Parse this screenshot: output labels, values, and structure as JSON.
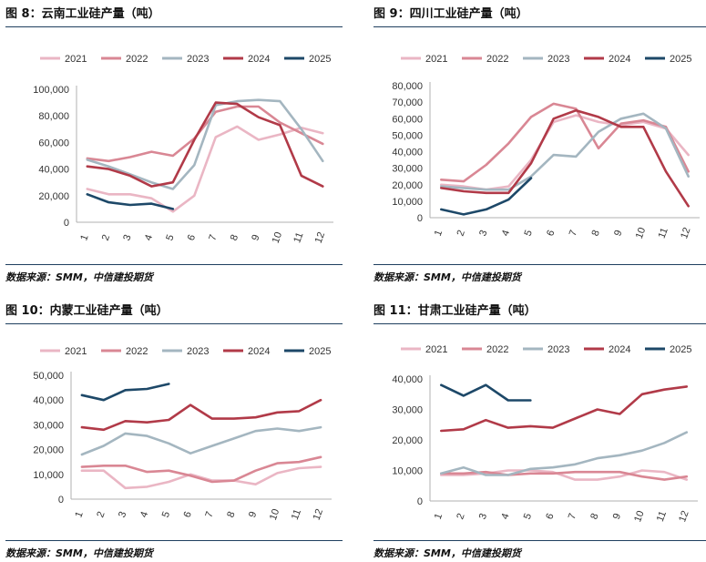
{
  "panels": [
    {
      "title": "图 8：云南工业硅产量（吨）",
      "source": "数据来源：SMM，中信建投期货"
    },
    {
      "title": "图 9：四川工业硅产量（吨）",
      "source": "数据来源：SMM，中信建投期货"
    },
    {
      "title": "图 10：内蒙工业硅产量（吨）",
      "source": "数据来源：SMM，中信建投期货"
    },
    {
      "title": "图 11：甘肃工业硅产量（吨）",
      "source": "数据来源：SMM，中信建投期货"
    }
  ],
  "colors": {
    "2021": "#eab6c4",
    "2022": "#d98794",
    "2023": "#a4b6c0",
    "2024": "#b13a48",
    "2025": "#1d4868"
  },
  "chart_data": [
    {
      "type": "line",
      "title": "图 8：云南工业硅产量（吨）",
      "categories": [
        "1",
        "2",
        "3",
        "4",
        "5",
        "6",
        "7",
        "8",
        "9",
        "10",
        "11",
        "12"
      ],
      "ylim": [
        0,
        100000
      ],
      "yticks": [
        "0",
        "20,000",
        "40,000",
        "60,000",
        "80,000",
        "100,000"
      ],
      "legend": "top",
      "grid": false,
      "series": [
        {
          "name": "2021",
          "values": [
            25000,
            21000,
            21000,
            18000,
            8000,
            20000,
            64000,
            72000,
            62000,
            66000,
            71000,
            67000
          ]
        },
        {
          "name": "2022",
          "values": [
            48000,
            46000,
            49000,
            53000,
            50000,
            63000,
            83000,
            87000,
            87000,
            75000,
            67000,
            59000
          ]
        },
        {
          "name": "2023",
          "values": [
            47000,
            42000,
            36000,
            30000,
            25000,
            43000,
            88000,
            91000,
            92000,
            91000,
            70000,
            46000
          ]
        },
        {
          "name": "2024",
          "values": [
            42000,
            40000,
            35000,
            27000,
            30000,
            62000,
            90000,
            89000,
            79000,
            73000,
            35000,
            27000
          ]
        },
        {
          "name": "2025",
          "values": [
            21000,
            15000,
            13000,
            14000,
            10000,
            null,
            null,
            null,
            null,
            null,
            null,
            null
          ]
        }
      ]
    },
    {
      "type": "line",
      "title": "图 9：四川工业硅产量（吨）",
      "categories": [
        "1",
        "2",
        "3",
        "4",
        "5",
        "6",
        "7",
        "8",
        "9",
        "10",
        "11",
        "12"
      ],
      "ylim": [
        0,
        80000
      ],
      "yticks": [
        "0",
        "10,000",
        "20,000",
        "30,000",
        "40,000",
        "50,000",
        "60,000",
        "70,000",
        "80,000"
      ],
      "legend": "top",
      "grid": false,
      "series": [
        {
          "name": "2021",
          "values": [
            20000,
            19000,
            17000,
            19000,
            35000,
            58000,
            62000,
            58000,
            56000,
            58000,
            54000,
            38000
          ]
        },
        {
          "name": "2022",
          "values": [
            23000,
            22000,
            32000,
            45000,
            61000,
            69000,
            66000,
            42000,
            57000,
            59000,
            55000,
            28000
          ]
        },
        {
          "name": "2023",
          "values": [
            19000,
            18000,
            17000,
            17000,
            25000,
            38000,
            37000,
            52000,
            60000,
            63000,
            54000,
            25000
          ]
        },
        {
          "name": "2024",
          "values": [
            18000,
            16000,
            15000,
            15000,
            33000,
            60000,
            65000,
            61000,
            55000,
            55000,
            28000,
            7000
          ]
        },
        {
          "name": "2025",
          "values": [
            5000,
            2000,
            5000,
            11000,
            24000,
            null,
            null,
            null,
            null,
            null,
            null,
            null
          ]
        }
      ]
    },
    {
      "type": "line",
      "title": "图 10：内蒙工业硅产量（吨）",
      "categories": [
        "1",
        "2",
        "3",
        "4",
        "5",
        "6",
        "7",
        "8",
        "9",
        "10",
        "11",
        "12"
      ],
      "ylim": [
        0,
        50000
      ],
      "yticks": [
        "0",
        "10,000",
        "20,000",
        "30,000",
        "40,000",
        "50,000"
      ],
      "legend": "top",
      "grid": false,
      "series": [
        {
          "name": "2021",
          "values": [
            11500,
            11500,
            4500,
            5000,
            7000,
            10000,
            7500,
            7500,
            6000,
            10500,
            12500,
            13000
          ]
        },
        {
          "name": "2022",
          "values": [
            13000,
            13500,
            13500,
            11000,
            11500,
            9500,
            7000,
            7500,
            11500,
            14500,
            15000,
            17000
          ]
        },
        {
          "name": "2023",
          "values": [
            18000,
            21500,
            26500,
            25500,
            22500,
            18500,
            21500,
            24500,
            27500,
            28500,
            27500,
            29000
          ]
        },
        {
          "name": "2024",
          "values": [
            29000,
            28000,
            31500,
            31000,
            32000,
            38000,
            32500,
            32500,
            33000,
            35000,
            35500,
            40000
          ]
        },
        {
          "name": "2025",
          "values": [
            42000,
            40000,
            44000,
            44500,
            46500,
            null,
            null,
            null,
            null,
            null,
            null,
            null
          ]
        }
      ]
    },
    {
      "type": "line",
      "title": "图 11：甘肃工业硅产量（吨）",
      "categories": [
        "1",
        "2",
        "3",
        "4",
        "5",
        "6",
        "7",
        "8",
        "9",
        "10",
        "11",
        "12"
      ],
      "ylim": [
        0,
        40000
      ],
      "yticks": [
        "0",
        "10,000",
        "20,000",
        "30,000",
        "40,000"
      ],
      "legend": "top",
      "grid": false,
      "series": [
        {
          "name": "2021",
          "values": [
            8500,
            8500,
            9000,
            10000,
            10000,
            9500,
            7000,
            7000,
            8000,
            10000,
            9500,
            7000
          ]
        },
        {
          "name": "2022",
          "values": [
            9000,
            9000,
            9500,
            8500,
            9000,
            9000,
            9500,
            9500,
            9500,
            8000,
            7000,
            8000
          ]
        },
        {
          "name": "2023",
          "values": [
            9000,
            11000,
            8500,
            8500,
            10500,
            11000,
            12000,
            14000,
            15000,
            16500,
            19000,
            22500
          ]
        },
        {
          "name": "2024",
          "values": [
            23000,
            23500,
            26500,
            24000,
            24500,
            24000,
            27000,
            30000,
            28500,
            35000,
            36500,
            37500
          ]
        },
        {
          "name": "2025",
          "values": [
            38000,
            34500,
            38000,
            33000,
            33000,
            null,
            null,
            null,
            null,
            null,
            null,
            null
          ]
        }
      ]
    }
  ]
}
